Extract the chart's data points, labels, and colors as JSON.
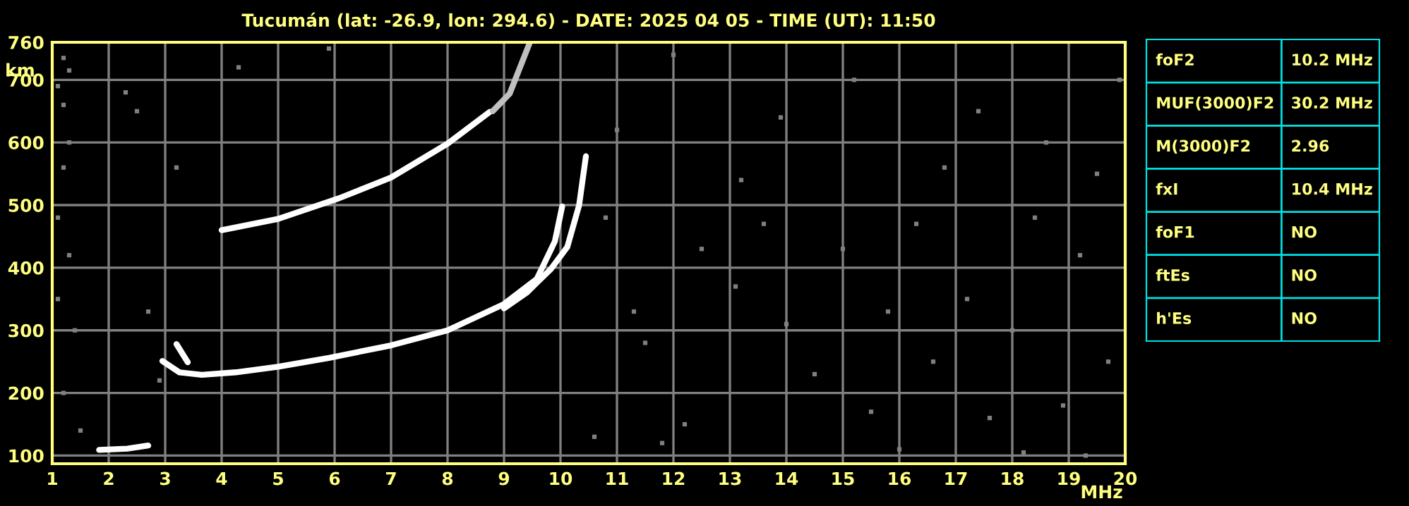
{
  "chart_data": [
    {
      "type": "line",
      "title": "Tucumán (lat: -26.9, lon: 294.6) - DATE: 2025 04 05 - TIME (UT): 11:50",
      "xlabel": "MHz",
      "ylabel": "km",
      "xlim": [
        1,
        20
      ],
      "ylim": [
        87,
        760
      ],
      "xticks": [
        1,
        2,
        3,
        4,
        5,
        6,
        7,
        8,
        9,
        10,
        11,
        12,
        13,
        14,
        15,
        16,
        17,
        18,
        19,
        20
      ],
      "yticks": [
        100,
        200,
        300,
        400,
        500,
        600,
        700,
        760
      ],
      "grid": true,
      "legend": false,
      "series": [
        {
          "color": "#ffffff",
          "marker": "none",
          "x": [
            2.95,
            3.25,
            3.65,
            4.25,
            5.0,
            5.9,
            7.0,
            8.0,
            9.0,
            9.58,
            9.9,
            10.03
          ],
          "values": [
            251,
            233,
            229,
            233,
            242,
            256,
            276,
            300,
            342,
            382,
            442,
            498
          ]
        },
        {
          "color": "#ffffff",
          "marker": "none",
          "x": [
            9.0,
            9.4,
            9.83,
            10.12,
            10.33,
            10.45
          ],
          "values": [
            335,
            360,
            398,
            433,
            500,
            578
          ]
        },
        {
          "color": "#ffffff",
          "marker": "none",
          "x": [
            4.0,
            5.0,
            6.08,
            7.0,
            8.0,
            8.75
          ],
          "values": [
            460,
            478,
            511,
            544,
            598,
            649
          ]
        },
        {
          "color": "#c0c0c0",
          "marker": "none",
          "x": [
            8.8,
            9.1,
            9.45
          ],
          "values": [
            650,
            678,
            758
          ]
        },
        {
          "color": "#ffffff",
          "marker": "none",
          "x": [
            1.83,
            2.33,
            2.7
          ],
          "values": [
            109,
            111,
            116
          ]
        },
        {
          "color": "#ffffff",
          "marker": "none",
          "x": [
            3.2,
            3.4
          ],
          "values": [
            278,
            249
          ]
        },
        {
          "type": "scatter",
          "color": "#808080",
          "marker": "square",
          "x": [
            1.2,
            1.3,
            1.1,
            1.2,
            1.3,
            1.2,
            1.1,
            1.3,
            1.1,
            1.4,
            1.2,
            1.5,
            2.3,
            2.5,
            3.2,
            2.9,
            2.7,
            4.3,
            5.9,
            11.0,
            10.8,
            11.3,
            11.5,
            12.2,
            12.5,
            13.1,
            13.6,
            13.2,
            14.0,
            14.5,
            15.0,
            15.5,
            15.8,
            16.3,
            16.6,
            16.8,
            17.2,
            17.4,
            17.6,
            18.0,
            18.4,
            18.6,
            18.9,
            19.2,
            19.5,
            19.7,
            19.9,
            15.2,
            13.9,
            12.0,
            10.6,
            11.8,
            16.0,
            18.2,
            19.3
          ],
          "values": [
            735,
            715,
            690,
            660,
            600,
            560,
            480,
            420,
            350,
            300,
            200,
            140,
            680,
            650,
            560,
            220,
            330,
            720,
            750,
            620,
            480,
            330,
            280,
            150,
            430,
            370,
            470,
            540,
            310,
            230,
            430,
            170,
            330,
            470,
            250,
            560,
            350,
            650,
            160,
            300,
            480,
            600,
            180,
            420,
            550,
            250,
            700,
            700,
            640,
            740,
            130,
            120,
            110,
            105,
            100
          ]
        }
      ]
    },
    {
      "type": "other",
      "annotations": [
        "foF2",
        "10.2 MHz",
        "MUF(3000)F2",
        "30.2 MHz",
        "M(3000)F2",
        "2.96",
        "fxI",
        "10.4 MHz",
        "foF1",
        "NO",
        "ftEs",
        "NO",
        "h'Es",
        "NO"
      ]
    }
  ]
}
